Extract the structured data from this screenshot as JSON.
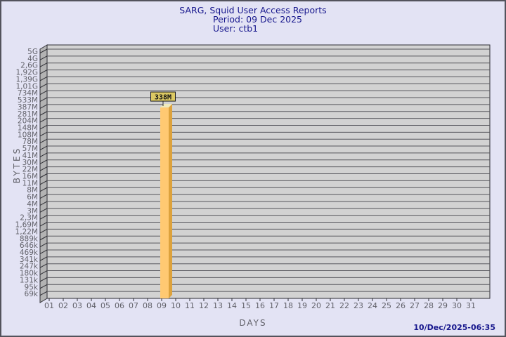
{
  "header": {
    "title": "SARG, Squid User Access Reports",
    "period": "Period: 09 Dec 2025",
    "user": "User: ctb1"
  },
  "footer": {
    "generated": "10/Dec/2025-06:35"
  },
  "colors": {
    "background": "#E3E3F4",
    "border": "#53535C",
    "title_text": "#17178D",
    "axis_text": "#62626A",
    "plot_bg": "#D2D2D2",
    "wall": "#B3B3B3",
    "grid": "#56565C",
    "edge": "#2E2E34",
    "bar_front": "#FFC972",
    "bar_side": "#DDA23C",
    "bar_top": "#EFE9BC",
    "bar_label_bg": "#DCC963"
  },
  "chart_data": {
    "type": "bar",
    "title": "SARG, Squid User Access Reports",
    "subtitle": "Period: 09 Dec 2025 — User: ctb1",
    "xlabel": "DAYS",
    "ylabel": "BYTES",
    "y_scale": "log",
    "grid": true,
    "legend": false,
    "categories": [
      "01",
      "02",
      "03",
      "04",
      "05",
      "06",
      "07",
      "08",
      "09",
      "10",
      "11",
      "12",
      "13",
      "14",
      "15",
      "16",
      "17",
      "18",
      "19",
      "20",
      "21",
      "22",
      "23",
      "24",
      "25",
      "26",
      "27",
      "28",
      "29",
      "30",
      "31"
    ],
    "values": [
      0,
      0,
      0,
      0,
      0,
      0,
      0,
      0,
      338000000,
      0,
      0,
      0,
      0,
      0,
      0,
      0,
      0,
      0,
      0,
      0,
      0,
      0,
      0,
      0,
      0,
      0,
      0,
      0,
      0,
      0,
      0
    ],
    "bar_labels": [
      "",
      "",
      "",
      "",
      "",
      "",
      "",
      "",
      "338M",
      "",
      "",
      "",
      "",
      "",
      "",
      "",
      "",
      "",
      "",
      "",
      "",
      "",
      "",
      "",
      "",
      "",
      "",
      "",
      "",
      "",
      ""
    ],
    "y_tick_labels": [
      "5G",
      "4G",
      "2,6G",
      "1,92G",
      "1,39G",
      "1,01G",
      "734M",
      "533M",
      "387M",
      "281M",
      "204M",
      "148M",
      "108M",
      "78M",
      "57M",
      "41M",
      "30M",
      "22M",
      "16M",
      "11M",
      "8M",
      "6M",
      "4M",
      "3M",
      "2,3M",
      "1,69M",
      "1,22M",
      "889k",
      "646k",
      "469k",
      "341k",
      "247k",
      "180k",
      "131k",
      "95k",
      "69k"
    ],
    "y_tick_values": [
      5000000000,
      4000000000,
      2600000000,
      1920000000,
      1390000000,
      1010000000,
      734000000,
      533000000,
      387000000,
      281000000,
      204000000,
      148000000,
      108000000,
      78000000,
      57000000,
      41000000,
      30000000,
      22000000,
      16000000,
      11000000,
      8000000,
      6000000,
      4000000,
      3000000,
      2300000,
      1690000,
      1220000,
      889000,
      646000,
      469000,
      341000,
      247000,
      180000,
      131000,
      95000,
      69000
    ]
  }
}
